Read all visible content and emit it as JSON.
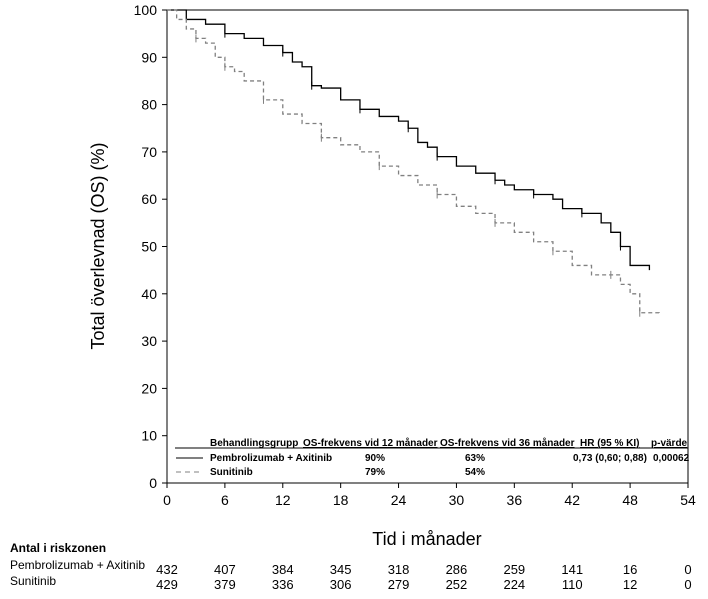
{
  "chart_data": {
    "type": "line",
    "title": "",
    "xlabel": "Tid i månader",
    "ylabel": "Total överlevnad (OS) (%)",
    "xlim": [
      0,
      54
    ],
    "ylim": [
      0,
      100
    ],
    "xticks": [
      0,
      6,
      12,
      18,
      24,
      30,
      36,
      42,
      48,
      54
    ],
    "yticks": [
      0,
      10,
      20,
      30,
      40,
      50,
      60,
      70,
      80,
      90,
      100
    ],
    "series": [
      {
        "name": "Pembrolizumab + Axitinib",
        "style": "solid",
        "color": "#000000",
        "x": [
          0,
          2,
          4,
          6,
          8,
          10,
          12,
          13,
          14,
          15,
          16,
          18,
          20,
          22,
          24,
          25,
          26,
          27,
          28,
          30,
          32,
          34,
          35,
          36,
          38,
          40,
          41,
          43,
          45,
          46,
          47,
          48,
          50
        ],
        "y": [
          100,
          98,
          97,
          95,
          94,
          92.5,
          91,
          89,
          88,
          84,
          83.5,
          81,
          79,
          77.5,
          76.5,
          75,
          72,
          71,
          69,
          67,
          65.5,
          64,
          63,
          62,
          61,
          60,
          58,
          57,
          55,
          53,
          50,
          46,
          45
        ]
      },
      {
        "name": "Sunitinib",
        "style": "dashed",
        "color": "#808080",
        "x": [
          0,
          1,
          2,
          3,
          4,
          5,
          6,
          7,
          8,
          10,
          12,
          14,
          16,
          18,
          20,
          22,
          24,
          26,
          28,
          30,
          32,
          34,
          36,
          38,
          40,
          42,
          44,
          46,
          47,
          48,
          49,
          51
        ],
        "y": [
          100,
          98,
          96,
          94,
          93,
          90,
          88,
          87,
          85,
          81,
          78,
          76,
          73,
          71.5,
          70,
          67,
          65,
          63,
          61,
          58.5,
          57,
          55,
          53,
          51,
          49,
          46,
          44,
          44,
          42,
          40,
          36,
          35.5
        ]
      }
    ],
    "legend": {
      "position": "bottom-right",
      "headers": [
        "Behandlingsgrupp",
        "OS-frekvens vid 12 månader",
        "OS-frekvens vid 36 månader",
        "HR (95 % KI)",
        "p-värde"
      ],
      "rows": [
        [
          "Pembrolizumab + Axitinib",
          "90%",
          "63%",
          "0,73 (0,60; 0,88)",
          "0,00062"
        ],
        [
          "Sunitinib",
          "79%",
          "54%",
          "",
          ""
        ]
      ]
    },
    "risk_table": {
      "title": "Antal i riskzonen",
      "rows": [
        {
          "label": "Pembrolizumab + Axitinib",
          "values": [
            "432",
            "407",
            "384",
            "345",
            "318",
            "286",
            "259",
            "141",
            "16",
            "0"
          ]
        },
        {
          "label": "Sunitinib",
          "values": [
            "429",
            "379",
            "336",
            "306",
            "279",
            "252",
            "224",
            "110",
            "12",
            "0"
          ]
        }
      ]
    }
  }
}
